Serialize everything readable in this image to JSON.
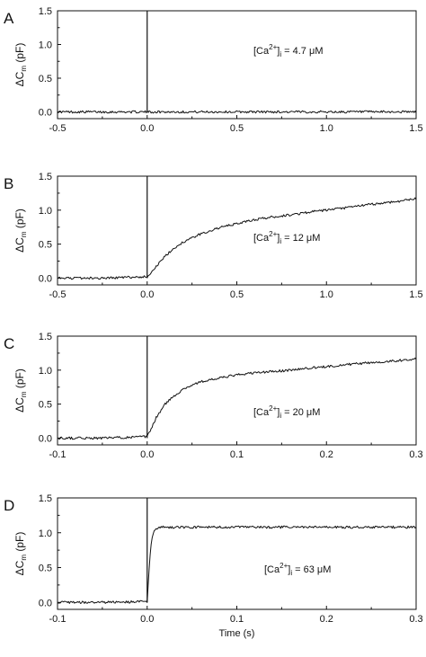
{
  "chart_data": [
    {
      "panel": "A",
      "type": "line",
      "xlim": [
        -0.5,
        1.5
      ],
      "ylim": [
        -0.1,
        1.5
      ],
      "xticks": [
        -0.5,
        0.0,
        0.5,
        1.0,
        1.5
      ],
      "xtick_labels": [
        "-0.5",
        "0.0",
        "0.5",
        "1.0",
        "1.5"
      ],
      "yticks": [
        0.0,
        0.5,
        1.0,
        1.5
      ],
      "ytick_labels": [
        "0.0",
        "0.5",
        "1.0",
        "1.5"
      ],
      "ylabel": "ΔC m (pF)",
      "annotation": {
        "pre": "[Ca",
        "sup": "2+",
        "sub": "i",
        "post": " = 4.7 μM"
      },
      "grid": false,
      "spike": {
        "x": 0.0,
        "y": 1.5
      },
      "series": [
        {
          "x": [
            -0.5,
            0.0,
            0.5,
            1.0,
            1.5
          ],
          "y": [
            0.0,
            0.0,
            0.0,
            0.0,
            0.0
          ]
        }
      ]
    },
    {
      "panel": "B",
      "type": "line",
      "xlim": [
        -0.5,
        1.5
      ],
      "ylim": [
        -0.1,
        1.5
      ],
      "xticks": [
        -0.5,
        0.0,
        0.5,
        1.0,
        1.5
      ],
      "xtick_labels": [
        "-0.5",
        "0.0",
        "0.5",
        "1.0",
        "1.5"
      ],
      "yticks": [
        0.0,
        0.5,
        1.0,
        1.5
      ],
      "ytick_labels": [
        "0.0",
        "0.5",
        "1.0",
        "1.5"
      ],
      "ylabel": "ΔC m (pF)",
      "annotation": {
        "pre": "[Ca",
        "sup": "2+",
        "sub": "i",
        "post": " = 12 μM"
      },
      "grid": false,
      "spike": {
        "x": 0.0,
        "y": 1.5
      },
      "series": [
        {
          "x": [
            -0.5,
            -0.25,
            0.0,
            0.02,
            0.05,
            0.1,
            0.15,
            0.2,
            0.3,
            0.4,
            0.5,
            0.6,
            0.7,
            0.8,
            0.9,
            1.0,
            1.1,
            1.2,
            1.3,
            1.4,
            1.5
          ],
          "y": [
            0.0,
            0.0,
            0.02,
            0.08,
            0.17,
            0.32,
            0.44,
            0.53,
            0.65,
            0.74,
            0.8,
            0.86,
            0.9,
            0.93,
            0.97,
            1.0,
            1.03,
            1.07,
            1.1,
            1.13,
            1.17
          ]
        }
      ]
    },
    {
      "panel": "C",
      "type": "line",
      "xlim": [
        -0.1,
        0.3
      ],
      "ylim": [
        -0.1,
        1.5
      ],
      "xticks": [
        -0.1,
        0.0,
        0.1,
        0.2,
        0.3
      ],
      "xtick_labels": [
        "-0.1",
        "0.0",
        "0.1",
        "0.2",
        "0.3"
      ],
      "yticks": [
        0.0,
        0.5,
        1.0,
        1.5
      ],
      "ytick_labels": [
        "0.0",
        "0.5",
        "1.0",
        "1.5"
      ],
      "ylabel": "ΔC m (pF)",
      "annotation": {
        "pre": "[Ca",
        "sup": "2+",
        "sub": "i",
        "post": " = 20 μM"
      },
      "grid": false,
      "spike": {
        "x": 0.0,
        "y": 1.5
      },
      "series": [
        {
          "x": [
            -0.1,
            -0.05,
            0.0,
            0.005,
            0.01,
            0.02,
            0.03,
            0.04,
            0.05,
            0.06,
            0.08,
            0.1,
            0.12,
            0.14,
            0.16,
            0.18,
            0.2,
            0.22,
            0.24,
            0.26,
            0.28,
            0.3
          ],
          "y": [
            0.0,
            0.0,
            0.02,
            0.15,
            0.3,
            0.5,
            0.62,
            0.72,
            0.78,
            0.83,
            0.88,
            0.93,
            0.96,
            0.98,
            1.0,
            1.03,
            1.05,
            1.08,
            1.1,
            1.12,
            1.14,
            1.17
          ]
        }
      ]
    },
    {
      "panel": "D",
      "type": "line",
      "xlim": [
        -0.1,
        0.3
      ],
      "ylim": [
        -0.1,
        1.5
      ],
      "xticks": [
        -0.1,
        0.0,
        0.1,
        0.2,
        0.3
      ],
      "xtick_labels": [
        "-0.1",
        "0.0",
        "0.1",
        "0.2",
        "0.3"
      ],
      "yticks": [
        0.0,
        0.5,
        1.0,
        1.5
      ],
      "ytick_labels": [
        "0.0",
        "0.5",
        "1.0",
        "1.5"
      ],
      "ylabel": "ΔC m (pF)",
      "xlabel": "Time (s)",
      "annotation": {
        "pre": "[Ca",
        "sup": "2+",
        "sub": "i",
        "post": " = 63 μM"
      },
      "grid": false,
      "spike": {
        "x": 0.0,
        "y": 1.5
      },
      "series": [
        {
          "x": [
            -0.1,
            -0.05,
            0.0,
            0.002,
            0.004,
            0.006,
            0.008,
            0.01,
            0.015,
            0.02,
            0.05,
            0.1,
            0.15,
            0.2,
            0.25,
            0.3
          ],
          "y": [
            0.0,
            0.0,
            0.01,
            0.45,
            0.8,
            0.97,
            1.04,
            1.06,
            1.08,
            1.08,
            1.08,
            1.08,
            1.08,
            1.08,
            1.08,
            1.08
          ]
        }
      ]
    }
  ]
}
